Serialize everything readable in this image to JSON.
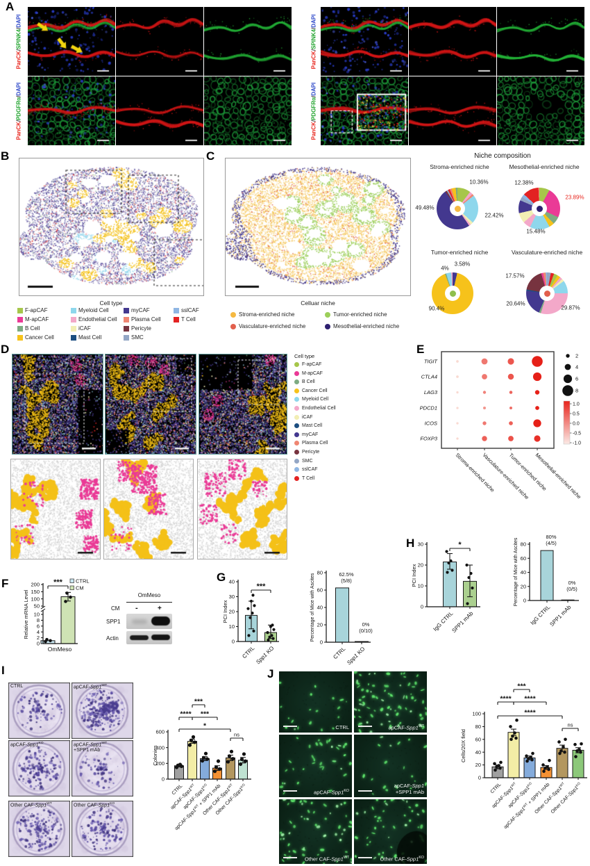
{
  "figure": {
    "panel_labels": [
      "A",
      "B",
      "C",
      "D",
      "E",
      "F",
      "G",
      "H",
      "I",
      "J"
    ]
  },
  "cell_types": [
    {
      "name": "F-apCAF",
      "color": "#a6c64a"
    },
    {
      "name": "M-apCAF",
      "color": "#ea3a96"
    },
    {
      "name": "B Cell",
      "color": "#7dab82"
    },
    {
      "name": "Cancer Cell",
      "color": "#f6c21b"
    },
    {
      "name": "Myeloid Cell",
      "color": "#8ed7ec"
    },
    {
      "name": "Endothelial Cell",
      "color": "#f3a8c9"
    },
    {
      "name": "iCAF",
      "color": "#f2eeb4"
    },
    {
      "name": "Mast Cell",
      "color": "#1c4e80"
    },
    {
      "name": "myCAF",
      "color": "#43388f"
    },
    {
      "name": "Plasma Cell",
      "color": "#ef8672"
    },
    {
      "name": "Pericyte",
      "color": "#77333f"
    },
    {
      "name": "SMC",
      "color": "#93a6c5"
    },
    {
      "name": "sslCAF",
      "color": "#8fb6e3"
    },
    {
      "name": "T Cell",
      "color": "#e32222"
    }
  ],
  "panel_a": {
    "label_top": [
      [
        "PanCK",
        "#e8251d"
      ],
      [
        "/",
        "#1a1a1a"
      ],
      [
        "SPINK4",
        "#1fa32c"
      ],
      [
        "/",
        "#1a1a1a"
      ],
      [
        "DAPI",
        "#2b46c8"
      ]
    ],
    "label_bottom": [
      [
        "PanCK",
        "#e8251d"
      ],
      [
        "/",
        "#1a1a1a"
      ],
      [
        "PDGFRα",
        "#1fa32c"
      ],
      [
        "/",
        "#1a1a1a"
      ],
      [
        "DAPI",
        "#2b46c8"
      ]
    ]
  },
  "panel_b": {
    "caption": "Cell type"
  },
  "panel_c": {
    "caption": "Celluar niche",
    "legend": [
      {
        "label": "Stroma-enriched niche",
        "color": "#f5b942"
      },
      {
        "label": "Vasculature-enriched niche",
        "color": "#e2604d"
      },
      {
        "label": "Tumor-enriched niche",
        "color": "#9ccf5a"
      },
      {
        "label": "Mesothelial-enriched niche",
        "color": "#2d2070"
      }
    ]
  },
  "niche_composition": {
    "title": "Niche composition",
    "pies": [
      {
        "name": "Stroma-enriched niche",
        "center_color": "#f5b942",
        "slices": [
          [
            "#a6c64a",
            10.36
          ],
          [
            "#f3a8c9",
            2.5
          ],
          [
            "#ef8672",
            1.5
          ],
          [
            "#8ed7ec",
            22.42
          ],
          [
            "#f2eeb4",
            2.2
          ],
          [
            "#f3a8c9",
            1.5
          ],
          [
            "#43388f",
            49.48
          ],
          [
            "#77333f",
            1.3
          ],
          [
            "#93a6c5",
            1.2
          ],
          [
            "#e32222",
            1.5
          ],
          [
            "#ef8672",
            1.5
          ],
          [
            "#f6c21b",
            3.2
          ],
          [
            "#7dab82",
            1.34
          ]
        ],
        "labels": [
          {
            "text": "10.36%"
          },
          {
            "text": "22.42%"
          },
          {
            "text": "49.48%"
          }
        ]
      },
      {
        "name": "Mesothelial-enriched niche",
        "center_color": "#2d2070",
        "slices": [
          [
            "#a6c64a",
            8
          ],
          [
            "#ea3a96",
            23.89
          ],
          [
            "#7dab82",
            6
          ],
          [
            "#f6c21b",
            4
          ],
          [
            "#8ed7ec",
            15.48
          ],
          [
            "#f3a8c9",
            6
          ],
          [
            "#f2eeb4",
            8
          ],
          [
            "#43388f",
            10
          ],
          [
            "#93a6c5",
            3
          ],
          [
            "#8fb6e3",
            2.5
          ],
          [
            "#e32222",
            12.38
          ],
          [
            "#ef8672",
            0.75
          ]
        ],
        "labels": [
          {
            "text": "12.38%"
          },
          {
            "text": "23.89%",
            "highlight": true
          },
          {
            "text": "15.48%"
          }
        ]
      },
      {
        "name": "Tumor-enriched niche",
        "center_color": "#8fbf4d",
        "slices": [
          [
            "#43388f",
            3.58
          ],
          [
            "#f6c21b",
            90.4
          ],
          [
            "#7dab82",
            1.0
          ],
          [
            "#8ed7ec",
            4.0
          ],
          [
            "#f3a8c9",
            1.02
          ]
        ],
        "labels": [
          {
            "text": "4%"
          },
          {
            "text": "3.58%"
          },
          {
            "text": "90.4%"
          }
        ]
      },
      {
        "name": "Vasculature-enriched niche",
        "center_color": "#e2604d",
        "slices": [
          [
            "#93a6c5",
            3
          ],
          [
            "#e32222",
            2.5
          ],
          [
            "#a6c64a",
            3
          ],
          [
            "#f6c21b",
            2.5
          ],
          [
            "#f3a8c9",
            2
          ],
          [
            "#f2eeb4",
            2
          ],
          [
            "#8ed7ec",
            9.92
          ],
          [
            "#f3a8c9",
            29.87
          ],
          [
            "#7dab82",
            1.5
          ],
          [
            "#43388f",
            20.64
          ],
          [
            "#1c4e80",
            1
          ],
          [
            "#77333f",
            17.57
          ],
          [
            "#ea3a96",
            1.5
          ],
          [
            "#ef8672",
            2
          ],
          [
            "#8fb6e3",
            1
          ]
        ],
        "labels": [
          {
            "text": "17.57%"
          },
          {
            "text": "20.64%"
          },
          {
            "text": "29.87%"
          }
        ]
      }
    ]
  },
  "panel_d": {
    "legend_title": "Cell type"
  },
  "panel_e": {
    "genes": [
      "TIGIT",
      "CTLA4",
      "LAG3",
      "PDCD1",
      "ICOS",
      "FOXP3"
    ],
    "columns": [
      "Stroma-enriched niche",
      "Vasculature-enriched niche",
      "Tumor-enriched niche",
      "Mesothelial-enriched niche"
    ],
    "size_legend": [
      "2",
      "4",
      "6",
      "8"
    ],
    "colorbar_ticks": [
      "1.0",
      "0.5",
      "0.0",
      "-0.5",
      "-1.0"
    ],
    "dots": [
      [
        [
          1,
          -0.9
        ],
        [
          4,
          0.1
        ],
        [
          4.2,
          0.45
        ],
        [
          8,
          1.0
        ]
      ],
      [
        [
          1,
          -0.9
        ],
        [
          3.4,
          0.1
        ],
        [
          3.8,
          0.45
        ],
        [
          6,
          1.0
        ]
      ],
      [
        [
          0.8,
          -0.9
        ],
        [
          1.4,
          0.0
        ],
        [
          1.5,
          0.3
        ],
        [
          2.6,
          1.0
        ]
      ],
      [
        [
          0.8,
          -0.9
        ],
        [
          1.2,
          -0.2
        ],
        [
          1.2,
          0.2
        ],
        [
          2.2,
          1.0
        ]
      ],
      [
        [
          0.8,
          -0.9
        ],
        [
          2.0,
          0.1
        ],
        [
          2.2,
          0.35
        ],
        [
          5.5,
          1.0
        ]
      ],
      [
        [
          0.8,
          -0.9
        ],
        [
          3.2,
          0.35
        ],
        [
          3.4,
          0.5
        ],
        [
          4.2,
          0.85
        ]
      ]
    ]
  },
  "western_blot": {
    "title": "OmMeso",
    "row_label": "CM",
    "minus": "-",
    "plus": "+",
    "band1": "SPP1",
    "band2": "Actin"
  },
  "charts": {
    "f": {
      "ylabel": "Relative mRNA Level",
      "xlabel": "OmMeso",
      "sig": "***",
      "ticks": [
        0,
        2,
        4,
        6,
        8,
        10,
        50,
        100,
        150,
        200
      ],
      "legend": [
        {
          "label": "CTRL",
          "color": "#c9e7f2"
        },
        {
          "label": "CM",
          "color": "#cfe3b4"
        }
      ],
      "bars": [
        {
          "label": "CTRL",
          "value": 1,
          "color": "#c9e7f2",
          "dots": [
            0.7,
            1,
            1.4
          ]
        },
        {
          "label": "CM",
          "value": 115,
          "color": "#cfe3b4",
          "err": [
            85,
            145
          ],
          "dots": [
            82,
            112,
            140
          ]
        }
      ]
    },
    "g_pci": {
      "ylabel": "PCI Index",
      "ymax": 40,
      "ticks": [
        0,
        10,
        20,
        30,
        40
      ],
      "sig": "***",
      "bars": [
        {
          "label": "CTRL",
          "value": 17.5,
          "color": "#a8d4da",
          "err": [
            8.5,
            27
          ],
          "dots": [
            4,
            7,
            16,
            19,
            22,
            24,
            27,
            31
          ]
        },
        {
          "label": "«Spp1» KO",
          "value": 6,
          "color": "#abd08f",
          "err": [
            2,
            11
          ],
          "dots": [
            1,
            2,
            3,
            4,
            6,
            8,
            10,
            11
          ]
        }
      ]
    },
    "g_ascites": {
      "ylabel": "Percentage of Mice with Ascites",
      "ymax": 80,
      "ticks": [
        0,
        20,
        40,
        60,
        80
      ],
      "bars": [
        {
          "label": "CTRL",
          "value": 62.5,
          "color": "#a8d4da",
          "top_label": [
            "62.5%",
            "(5/8)"
          ]
        },
        {
          "label": "«Spp1» KO",
          "value": 0.8,
          "color": "#abd08f",
          "top_label": [
            "0%",
            "(0/10)"
          ]
        }
      ]
    },
    "h_pci": {
      "ylabel": "PCI Index",
      "ymax": 30,
      "ticks": [
        0,
        10,
        20,
        30
      ],
      "sig": "*",
      "bars": [
        {
          "label": "IgG CTRL",
          "value": 21.5,
          "color": "#a8d4da",
          "err": [
            18,
            25.5
          ],
          "dots": [
            16.5,
            17.5,
            21,
            22,
            26.5
          ]
        },
        {
          "label": "SPP1 mAb",
          "value": 12.2,
          "color": "#abd08f",
          "err": [
            4.8,
            20
          ],
          "dots": [
            1.5,
            9,
            14,
            16,
            20
          ]
        }
      ]
    },
    "h_ascites": {
      "ylabel": "Percentage of Mice with Ascites",
      "ymax": 80,
      "ticks": [
        0,
        20,
        40,
        60,
        80
      ],
      "bars": [
        {
          "label": "IgG CTRL",
          "value": 80,
          "shown": 71,
          "color": "#a8d4da",
          "top_label": [
            "80%",
            "(4/5)"
          ]
        },
        {
          "label": "SPP1 mAb",
          "value": 0.8,
          "color": "#abd08f",
          "top_label": [
            "0%",
            "(0/5)"
          ]
        }
      ]
    },
    "i_colonies": {
      "ylabel": "Colonies",
      "ymax": 600,
      "ticks": [
        0,
        200,
        400,
        600
      ],
      "bars": [
        {
          "label": "CTRL",
          "value": 170,
          "color": "#a0a0a0",
          "err": [
            155,
            185
          ],
          "dots": [
            150,
            163,
            175,
            185
          ]
        },
        {
          "label": "apCAF-«Spp1»^WT^",
          "value": 480,
          "color": "#f3eda6",
          "err": [
            455,
            505
          ],
          "dots": [
            432,
            468,
            492,
            535
          ]
        },
        {
          "label": "apCAF-«Spp1»^KO^",
          "value": 260,
          "color": "#84abdb",
          "err": [
            235,
            285
          ],
          "dots": [
            232,
            255,
            272,
            325
          ]
        },
        {
          "label": "apCAF-«Spp1»^WT^ + SPP1 mAb",
          "value": 140,
          "color": "#f49133",
          "err": [
            110,
            170
          ],
          "dots": [
            100,
            128,
            150,
            228
          ]
        },
        {
          "label": "Other CAF-«Spp1»^WT^",
          "value": 270,
          "color": "#b3975f",
          "err": [
            235,
            305
          ],
          "dots": [
            220,
            258,
            292,
            350
          ]
        },
        {
          "label": "Other CAF-«Spp1»^KO^",
          "value": 240,
          "color": "#bfe2d2",
          "err": [
            205,
            275
          ],
          "dots": [
            190,
            228,
            252,
            318
          ]
        }
      ],
      "brackets": [
        {
          "a": 1,
          "b": 2,
          "label": "***",
          "row": 0
        },
        {
          "a": 0,
          "b": 1,
          "label": "****",
          "row": 1
        },
        {
          "a": 1,
          "b": 3,
          "label": "***",
          "row": 1
        },
        {
          "a": 0,
          "b": 4,
          "label": "*",
          "row": 2
        },
        {
          "a": 4,
          "b": 5,
          "label": "ns",
          "row": 3
        }
      ]
    },
    "j_cells": {
      "ylabel": "Cells/20X field",
      "ymax": 100,
      "ticks": [
        0,
        20,
        40,
        60,
        80,
        100
      ],
      "bars": [
        {
          "label": "CTRL",
          "value": 17,
          "color": "#a0a0a0",
          "err": [
            14,
            20
          ],
          "dots": [
            12,
            15,
            17,
            19,
            22,
            24
          ]
        },
        {
          "label": "apCAF-«Spp1»^WT^",
          "value": 71,
          "color": "#f3eda6",
          "err": [
            66,
            76
          ],
          "dots": [
            60,
            62,
            65,
            70,
            80,
            90
          ]
        },
        {
          "label": "apCAF-«Spp1»^KO^",
          "value": 31,
          "color": "#84abdb",
          "err": [
            28,
            34
          ],
          "dots": [
            26,
            28,
            30,
            32,
            34,
            38
          ]
        },
        {
          "label": "apCAF-«Spp1»^WT^ + SPP1 mAb",
          "value": 16,
          "color": "#f49133",
          "err": [
            13,
            19
          ],
          "dots": [
            10,
            13,
            15,
            17,
            20,
            27
          ]
        },
        {
          "label": "Other CAF-«Spp1»^WT^",
          "value": 46,
          "color": "#b3975f",
          "err": [
            41,
            51
          ],
          "dots": [
            38,
            40,
            42,
            48,
            56,
            60
          ]
        },
        {
          "label": "Other CAF-«Spp1»^KO^",
          "value": 43,
          "color": "#8cc87a",
          "err": [
            39,
            47
          ],
          "dots": [
            33,
            40,
            42,
            44,
            52,
            53
          ]
        }
      ],
      "brackets": [
        {
          "a": 1,
          "b": 2,
          "label": "***",
          "row": 0
        },
        {
          "a": 0,
          "b": 1,
          "label": "****",
          "row": 1
        },
        {
          "a": 1,
          "b": 3,
          "label": "****",
          "row": 1
        },
        {
          "a": 0,
          "b": 4,
          "label": "****",
          "row": 2
        },
        {
          "a": 4,
          "b": 5,
          "label": "ns",
          "row": 3
        }
      ]
    }
  },
  "panel_i": {
    "well_labels": [
      [
        "CTRL"
      ],
      [
        "apCAF-«Spp1»^WT^"
      ],
      [
        "apCAF-«Spp1»^KO^"
      ],
      [
        "apCAF-«Spp1»^WT^",
        "+SPP1 mAb"
      ],
      [
        "Other CAF-«Spp1»^WT^"
      ],
      [
        "Other CAF-«Spp1»^KO^"
      ]
    ]
  },
  "panel_j": {
    "image_labels": [
      [
        "CTRL"
      ],
      [
        "apCAF-«Spp1»^WT^"
      ],
      [
        "apCAF-«Spp1»^KO^"
      ],
      [
        "apCAF-«Spp1»",
        "+SPP1 mAb"
      ],
      [
        "Other CAF-«Spp1»^WT^"
      ],
      [
        "Other CAF-«Spp1»^KO^"
      ]
    ]
  }
}
